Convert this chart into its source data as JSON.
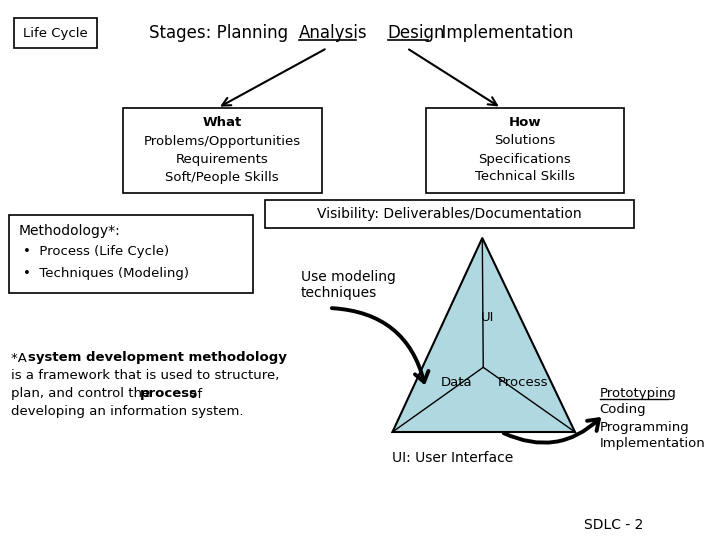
{
  "bg_color": "#ffffff",
  "life_cycle_label": "Life Cycle",
  "stages_prefix": "Stages: Planning  ",
  "stages_analysis": "Analysis",
  "stages_middle": "    ",
  "stages_design": "Design",
  "stages_suffix": "  Implementation",
  "box1_lines": [
    "What",
    "Problems/Opportunities",
    "Requirements",
    "Soft/People Skills"
  ],
  "box2_lines": [
    "How",
    "Solutions",
    "Specifications",
    "Technical Skills"
  ],
  "visibility_label": "Visibility: Deliverables/Documentation",
  "methodology_title": "Methodology*:",
  "methodology_bullets": [
    "Process (Life Cycle)",
    "Techniques (Modeling)"
  ],
  "use_modeling": "Use modeling\ntechniques",
  "triangle_fill": "#b0d8e0",
  "triangle_stroke": "#000000",
  "data_label": "Data",
  "process_label": "Process",
  "ui_label": "UI",
  "ui_full_label": "UI: User Interface",
  "right_text_lines": [
    "Prototyping",
    "Coding",
    "Programming",
    "Implementation"
  ],
  "sdlc_label": "SDLC - 2"
}
